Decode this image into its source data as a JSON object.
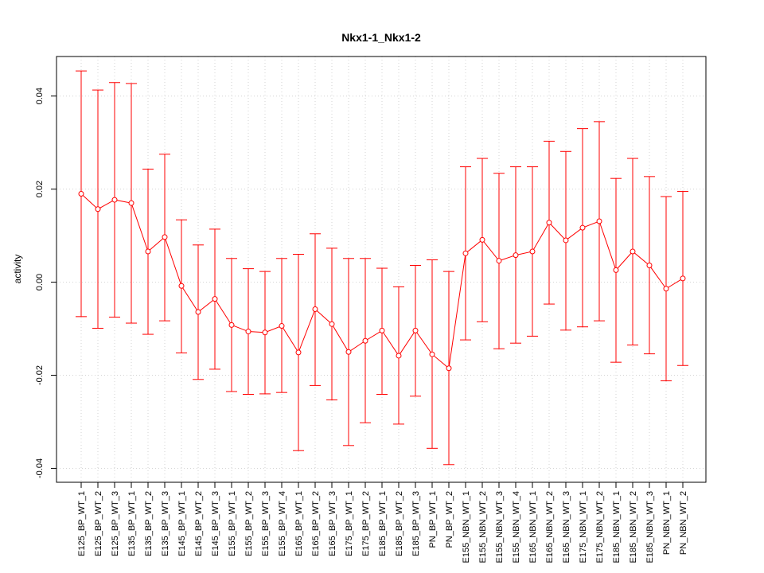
{
  "chart_data": {
    "type": "line",
    "title": "Nkx1-1_Nkx1-2",
    "xlabel": "",
    "ylabel": "activity",
    "ylim": [
      -0.043,
      0.0485
    ],
    "yticks": [
      -0.04,
      -0.02,
      0.0,
      0.02,
      0.04
    ],
    "ytick_labels": [
      "-0.04",
      "-0.02",
      "0.00",
      "0.02",
      "0.04"
    ],
    "grid": true,
    "line_color": "#ff0000",
    "grid_color": "#d3d3d3",
    "categories": [
      "E125_BP_WT_1",
      "E125_BP_WT_2",
      "E125_BP_WT_3",
      "E135_BP_WT_1",
      "E135_BP_WT_2",
      "E135_BP_WT_3",
      "E145_BP_WT_1",
      "E145_BP_WT_2",
      "E145_BP_WT_3",
      "E155_BP_WT_1",
      "E155_BP_WT_2",
      "E155_BP_WT_3",
      "E155_BP_WT_4",
      "E165_BP_WT_1",
      "E165_BP_WT_2",
      "E165_BP_WT_3",
      "E175_BP_WT_1",
      "E175_BP_WT_2",
      "E185_BP_WT_1",
      "E185_BP_WT_2",
      "E185_BP_WT_3",
      "PN_BP_WT_1",
      "PN_BP_WT_2",
      "E155_NBN_WT_1",
      "E155_NBN_WT_2",
      "E155_NBN_WT_3",
      "E155_NBN_WT_4",
      "E165_NBN_WT_1",
      "E165_NBN_WT_2",
      "E165_NBN_WT_3",
      "E175_NBN_WT_1",
      "E175_NBN_WT_2",
      "E185_NBN_WT_1",
      "E185_NBN_WT_2",
      "E185_NBN_WT_3",
      "PN_NBN_WT_1",
      "PN_NBN_WT_2"
    ],
    "series": [
      {
        "values": [
          0.019,
          0.0157,
          0.0177,
          0.017,
          0.0066,
          0.0097,
          -0.0008,
          -0.0064,
          -0.0036,
          -0.0092,
          -0.0106,
          -0.0108,
          -0.0094,
          -0.0151,
          -0.0058,
          -0.009,
          -0.015,
          -0.0126,
          -0.0104,
          -0.0158,
          -0.0104,
          -0.0155,
          -0.0185,
          0.0062,
          0.0091,
          0.0046,
          0.0058,
          0.0066,
          0.0128,
          0.009,
          0.0117,
          0.0131,
          0.0026,
          0.0066,
          0.0036,
          -0.0014,
          0.0008
        ],
        "lower": [
          -0.0074,
          -0.0099,
          -0.0075,
          -0.0088,
          -0.0112,
          -0.0083,
          -0.0152,
          -0.0209,
          -0.0187,
          -0.0235,
          -0.0241,
          -0.024,
          -0.0237,
          -0.0362,
          -0.0222,
          -0.0253,
          -0.0351,
          -0.0302,
          -0.0241,
          -0.0305,
          -0.0245,
          -0.0357,
          -0.0392,
          -0.0124,
          -0.0085,
          -0.0143,
          -0.0131,
          -0.0116,
          -0.0047,
          -0.0103,
          -0.0096,
          -0.0083,
          -0.0172,
          -0.0135,
          -0.0154,
          -0.0212,
          -0.0179
        ],
        "upper": [
          0.0454,
          0.0413,
          0.0429,
          0.0427,
          0.0243,
          0.0275,
          0.0134,
          0.008,
          0.0114,
          0.0051,
          0.0029,
          0.0023,
          0.0051,
          0.006,
          0.0104,
          0.0073,
          0.0051,
          0.0051,
          0.003,
          -0.001,
          0.0036,
          0.0048,
          0.0023,
          0.0248,
          0.0266,
          0.0234,
          0.0248,
          0.0248,
          0.0303,
          0.0281,
          0.033,
          0.0345,
          0.0223,
          0.0266,
          0.0227,
          0.0184,
          0.0195
        ]
      }
    ]
  }
}
